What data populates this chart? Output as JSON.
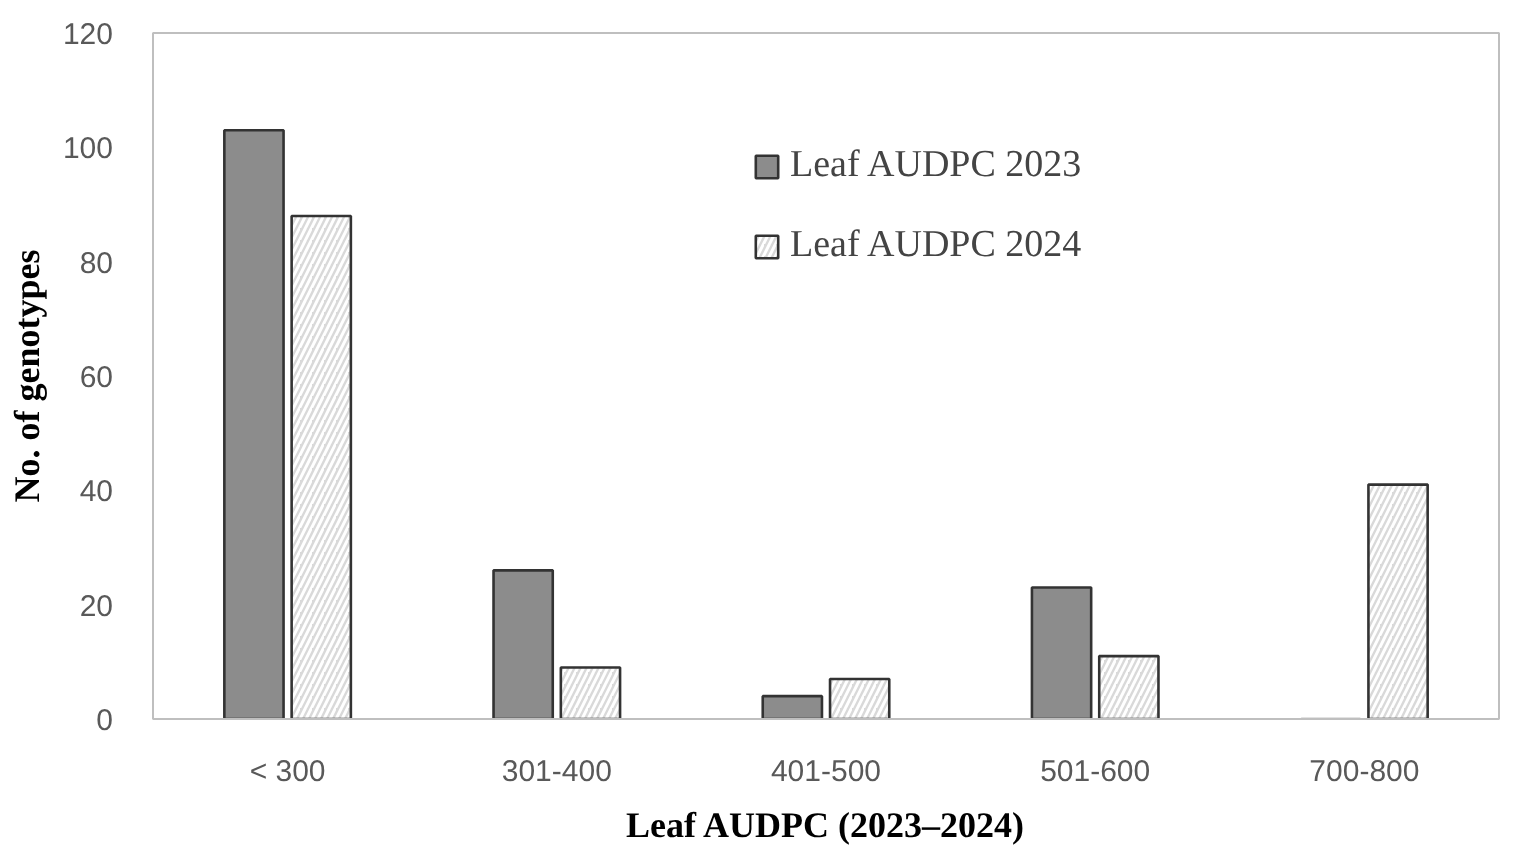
{
  "chart_data": {
    "type": "bar",
    "xlabel": "Leaf AUDPC (2023–2024)",
    "ylabel": "No. of genotypes",
    "categories": [
      "< 300",
      "301-400",
      "401-500",
      "501-600",
      "700-800"
    ],
    "series": [
      {
        "name": "Leaf AUDPC 2023",
        "color": "#8c8c8c",
        "values": [
          103,
          26,
          4,
          23,
          0
        ]
      },
      {
        "name": "Leaf AUDPC 2024",
        "color": "#d9d9d9",
        "values": [
          88,
          9,
          7,
          11,
          41
        ]
      }
    ],
    "ylim": [
      0,
      120
    ],
    "yticks": [
      0,
      20,
      40,
      60,
      80,
      100,
      120
    ],
    "grid": false,
    "legend": "top right"
  }
}
